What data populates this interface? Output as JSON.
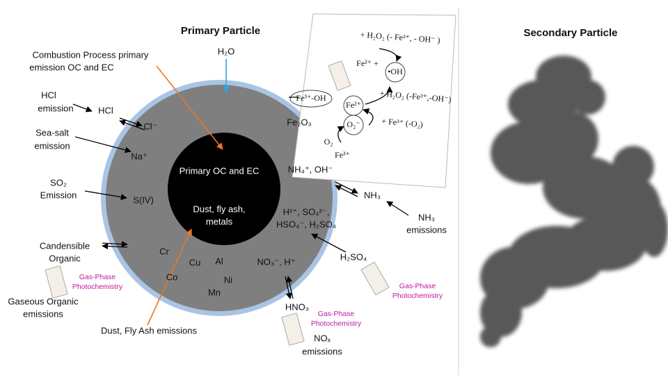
{
  "titles": {
    "primary": "Primary Particle",
    "secondary": "Secondary Particle"
  },
  "left_labels": {
    "combustion": [
      "Combustion Process primary",
      "emission OC and EC"
    ],
    "hcl_emission": [
      "HCl",
      "emission"
    ],
    "sea_salt": [
      "Sea-salt",
      "emission"
    ],
    "so2": [
      "SO₂",
      "Emission"
    ],
    "condensible": [
      "Candensible",
      "Organic"
    ],
    "gas_phase_left": [
      "Gas-Phase",
      "Photochemistry"
    ],
    "gaseous_organic": [
      "Gaseous Organic",
      "emissions"
    ],
    "dust": "Dust, Fly Ash emissions"
  },
  "particle": {
    "h2o": "H₂O",
    "hcl": "HCl",
    "cl": "Cl⁻",
    "na": "Na⁺",
    "s4": "S(IV)",
    "core": "Primary OC and EC",
    "core_sub": [
      "Dust, fly ash,",
      "metals"
    ],
    "fe2o3": "Fe₂O₃",
    "nh4": "NH₄⁺, OH⁻",
    "sulfate": [
      "H²⁺, SO₄²⁻,",
      "HSO₄⁻, H₂SO₄"
    ],
    "metals": [
      "Cr",
      "Cu",
      "Al",
      "Co",
      "Ni",
      "Mn"
    ],
    "no3": "NO₃⁻, H⁺"
  },
  "right_labels": {
    "nh3": "NH₃",
    "nh3_emissions": [
      "NH₃",
      "emissions"
    ],
    "h2so4": "H₂SO₄",
    "gas_phase_right": [
      "Gas-Phase",
      "Photochemistry"
    ],
    "hno3": "HNO₃",
    "gas_phase_bottom": [
      "Gas-Phase",
      "Photochemistry"
    ],
    "nox": [
      "NOₓ",
      "emissions"
    ]
  },
  "fenton": [
    "+ H₂O₂ (- Fe³⁺, - OH⁻ )",
    "Fe²⁺ +",
    "•OH",
    "Fe³⁺-OH",
    "Fe²⁺",
    "+ H₂O₂ (-Fe³⁺,-OH⁻)",
    "O₂⁻",
    "+ Fe³⁺ (-O₂)",
    "O₂",
    "Fe³⁺"
  ]
}
